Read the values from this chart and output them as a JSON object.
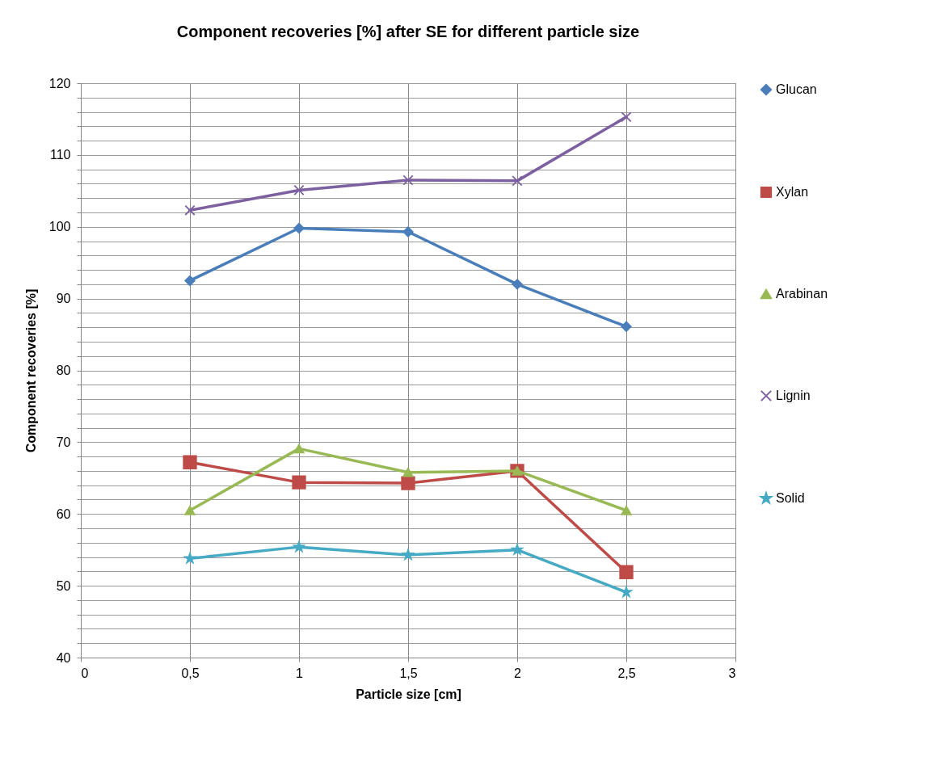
{
  "chart_data": {
    "type": "line",
    "title": "Component recoveries [%] after SE for different particle size",
    "xlabel": "Particle size [cm]",
    "ylabel": "Component recoveries [%]",
    "x": [
      0.5,
      1,
      1.5,
      2,
      2.5
    ],
    "series": [
      {
        "name": "Glucan",
        "color": "#4a7ebb",
        "marker": "diamond",
        "values": [
          92.5,
          99.8,
          99.3,
          92,
          86.1
        ]
      },
      {
        "name": "Xylan",
        "color": "#be4b48",
        "marker": "square",
        "values": [
          67.2,
          64.4,
          64.3,
          66,
          51.9
        ]
      },
      {
        "name": "Arabinan",
        "color": "#98b954",
        "marker": "triangle",
        "values": [
          60.5,
          69.1,
          65.8,
          66,
          60.5
        ]
      },
      {
        "name": "Lignin",
        "color": "#7d60a0",
        "marker": "cross",
        "values": [
          102.3,
          105.1,
          106.5,
          106.4,
          115.3
        ]
      },
      {
        "name": "Solid",
        "color": "#46aac5",
        "marker": "star",
        "values": [
          53.8,
          55.4,
          54.3,
          55,
          49.1
        ]
      }
    ],
    "xlim": [
      0,
      3
    ],
    "xticks": [
      0,
      {
        "value": 0.5,
        "label": "0,5"
      },
      1,
      {
        "value": 1.5,
        "label": "1,5"
      },
      2,
      {
        "value": 2.5,
        "label": "2,5"
      },
      3
    ],
    "ylim": [
      40,
      120
    ],
    "yticks": [
      40,
      {
        "value": 42,
        "label": null
      },
      {
        "value": 44,
        "label": null
      },
      {
        "value": 46,
        "label": null
      },
      {
        "value": 48,
        "label": null
      },
      50,
      {
        "value": 52,
        "label": null
      },
      {
        "value": 54,
        "label": null
      },
      {
        "value": 56,
        "label": null
      },
      {
        "value": 58,
        "label": null
      },
      60,
      {
        "value": 62,
        "label": null
      },
      {
        "value": 64,
        "label": null
      },
      {
        "value": 66,
        "label": null
      },
      {
        "value": 68,
        "label": null
      },
      70,
      {
        "value": 72,
        "label": null
      },
      {
        "value": 74,
        "label": null
      },
      {
        "value": 76,
        "label": null
      },
      {
        "value": 78,
        "label": null
      },
      80,
      {
        "value": 82,
        "label": null
      },
      {
        "value": 84,
        "label": null
      },
      {
        "value": 86,
        "label": null
      },
      {
        "value": 88,
        "label": null
      },
      90,
      {
        "value": 92,
        "label": null
      },
      {
        "value": 94,
        "label": null
      },
      {
        "value": 96,
        "label": null
      },
      {
        "value": 98,
        "label": null
      },
      100,
      {
        "value": 102,
        "label": null
      },
      {
        "value": 104,
        "label": null
      },
      {
        "value": 106,
        "label": null
      },
      {
        "value": 108,
        "label": null
      },
      110,
      {
        "value": 112,
        "label": null
      },
      {
        "value": 114,
        "label": null
      },
      {
        "value": 116,
        "label": null
      },
      {
        "value": 118,
        "label": null
      },
      120
    ],
    "grid": true,
    "legend": "right",
    "line_style": "solid"
  }
}
